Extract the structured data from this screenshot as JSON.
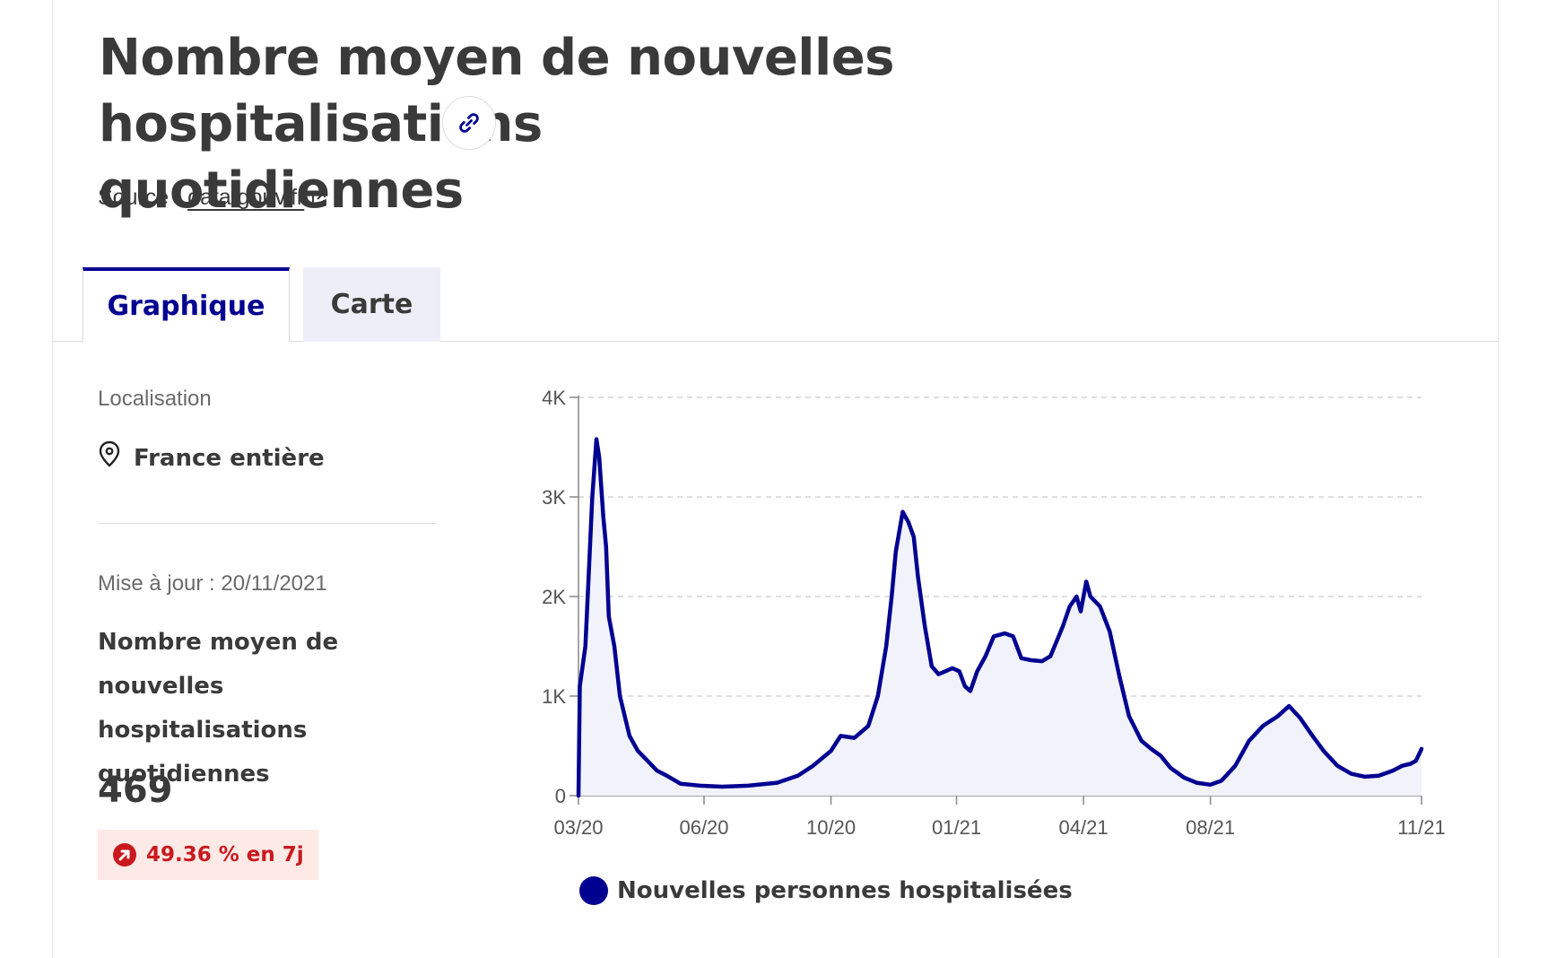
{
  "header": {
    "title_line1": "Nombre moyen de nouvelles hospitalisations",
    "title_line2": "quotidiennes",
    "source_prefix": "Source :",
    "source_link": "data.gouv.fr"
  },
  "tabs": [
    {
      "label": "Graphique",
      "active": true
    },
    {
      "label": "Carte",
      "active": false
    }
  ],
  "sidebar": {
    "location_label": "Localisation",
    "location_value": "France entière",
    "updated": "Mise à jour : 20/11/2021",
    "indicator_title": "Nombre moyen de nouvelles hospitalisations quotidiennes",
    "indicator_value": "469",
    "trend": "49.36 % en 7j"
  },
  "icons": {
    "link": "link-icon",
    "external": "external-link-icon",
    "location": "location-pin-icon",
    "trend": "arrow-up-right-circle-icon"
  },
  "colors": {
    "accent": "#000091",
    "area_fill": "#f2f2fb",
    "grid": "#cccccc",
    "badge_bg": "#fde9e6",
    "badge_text": "#c9191e",
    "tab_inactive_bg": "#eeeef8"
  },
  "chart_data": {
    "type": "area",
    "title": "",
    "xlabel": "",
    "ylabel": "",
    "x_range": [
      "2020-03-19",
      "2021-11-20"
    ],
    "ylim": [
      0,
      4000
    ],
    "y_ticks": [
      0,
      1000,
      2000,
      3000,
      4000
    ],
    "y_tick_labels": [
      "0",
      "1K",
      "2K",
      "3K",
      "4K"
    ],
    "x_ticks": [
      {
        "date": "2020-03-19",
        "label": "03/20"
      },
      {
        "date": "2020-06-18",
        "label": "06/20"
      },
      {
        "date": "2020-09-18",
        "label": "10/20"
      },
      {
        "date": "2020-12-18",
        "label": "01/21"
      },
      {
        "date": "2021-03-20",
        "label": "04/21"
      },
      {
        "date": "2021-06-20",
        "label": "08/21"
      },
      {
        "date": "2021-11-20",
        "label": "11/21"
      }
    ],
    "grid": true,
    "legend": "bottom",
    "series": [
      {
        "name": "Nouvelles personnes hospitalisées",
        "points": [
          [
            "2020-03-19",
            0
          ],
          [
            "2020-03-20",
            1100
          ],
          [
            "2020-03-24",
            1500
          ],
          [
            "2020-03-26",
            2100
          ],
          [
            "2020-03-29",
            3000
          ],
          [
            "2020-04-01",
            3580
          ],
          [
            "2020-04-03",
            3400
          ],
          [
            "2020-04-06",
            2800
          ],
          [
            "2020-04-08",
            2500
          ],
          [
            "2020-04-10",
            1800
          ],
          [
            "2020-04-14",
            1500
          ],
          [
            "2020-04-18",
            1000
          ],
          [
            "2020-04-25",
            600
          ],
          [
            "2020-05-01",
            450
          ],
          [
            "2020-05-08",
            350
          ],
          [
            "2020-05-15",
            250
          ],
          [
            "2020-05-22",
            200
          ],
          [
            "2020-06-01",
            120
          ],
          [
            "2020-06-15",
            100
          ],
          [
            "2020-07-01",
            90
          ],
          [
            "2020-07-20",
            100
          ],
          [
            "2020-08-10",
            130
          ],
          [
            "2020-08-25",
            200
          ],
          [
            "2020-09-05",
            300
          ],
          [
            "2020-09-18",
            450
          ],
          [
            "2020-09-25",
            600
          ],
          [
            "2020-10-05",
            580
          ],
          [
            "2020-10-15",
            700
          ],
          [
            "2020-10-22",
            1000
          ],
          [
            "2020-10-28",
            1500
          ],
          [
            "2020-11-01",
            2000
          ],
          [
            "2020-11-04",
            2450
          ],
          [
            "2020-11-09",
            2850
          ],
          [
            "2020-11-13",
            2750
          ],
          [
            "2020-11-17",
            2600
          ],
          [
            "2020-11-20",
            2200
          ],
          [
            "2020-11-25",
            1700
          ],
          [
            "2020-11-30",
            1300
          ],
          [
            "2020-12-05",
            1220
          ],
          [
            "2020-12-10",
            1250
          ],
          [
            "2020-12-15",
            1280
          ],
          [
            "2020-12-20",
            1250
          ],
          [
            "2020-12-24",
            1100
          ],
          [
            "2020-12-28",
            1050
          ],
          [
            "2021-01-02",
            1250
          ],
          [
            "2021-01-08",
            1400
          ],
          [
            "2021-01-14",
            1600
          ],
          [
            "2021-01-22",
            1630
          ],
          [
            "2021-01-28",
            1600
          ],
          [
            "2021-02-03",
            1380
          ],
          [
            "2021-02-10",
            1360
          ],
          [
            "2021-02-18",
            1350
          ],
          [
            "2021-02-24",
            1400
          ],
          [
            "2021-03-05",
            1700
          ],
          [
            "2021-03-10",
            1900
          ],
          [
            "2021-03-15",
            2000
          ],
          [
            "2021-03-18",
            1850
          ],
          [
            "2021-03-22",
            2150
          ],
          [
            "2021-03-25",
            2000
          ],
          [
            "2021-04-01",
            1900
          ],
          [
            "2021-04-08",
            1650
          ],
          [
            "2021-04-15",
            1200
          ],
          [
            "2021-04-22",
            800
          ],
          [
            "2021-05-01",
            550
          ],
          [
            "2021-05-08",
            470
          ],
          [
            "2021-05-15",
            400
          ],
          [
            "2021-05-22",
            280
          ],
          [
            "2021-06-01",
            180
          ],
          [
            "2021-06-10",
            130
          ],
          [
            "2021-06-20",
            110
          ],
          [
            "2021-06-28",
            150
          ],
          [
            "2021-07-08",
            300
          ],
          [
            "2021-07-18",
            550
          ],
          [
            "2021-07-28",
            700
          ],
          [
            "2021-08-08",
            800
          ],
          [
            "2021-08-16",
            900
          ],
          [
            "2021-08-24",
            780
          ],
          [
            "2021-09-01",
            620
          ],
          [
            "2021-09-10",
            450
          ],
          [
            "2021-09-20",
            300
          ],
          [
            "2021-09-30",
            220
          ],
          [
            "2021-10-10",
            190
          ],
          [
            "2021-10-20",
            200
          ],
          [
            "2021-10-30",
            250
          ],
          [
            "2021-11-06",
            300
          ],
          [
            "2021-11-12",
            320
          ],
          [
            "2021-11-16",
            350
          ],
          [
            "2021-11-20",
            469
          ]
        ]
      }
    ]
  }
}
